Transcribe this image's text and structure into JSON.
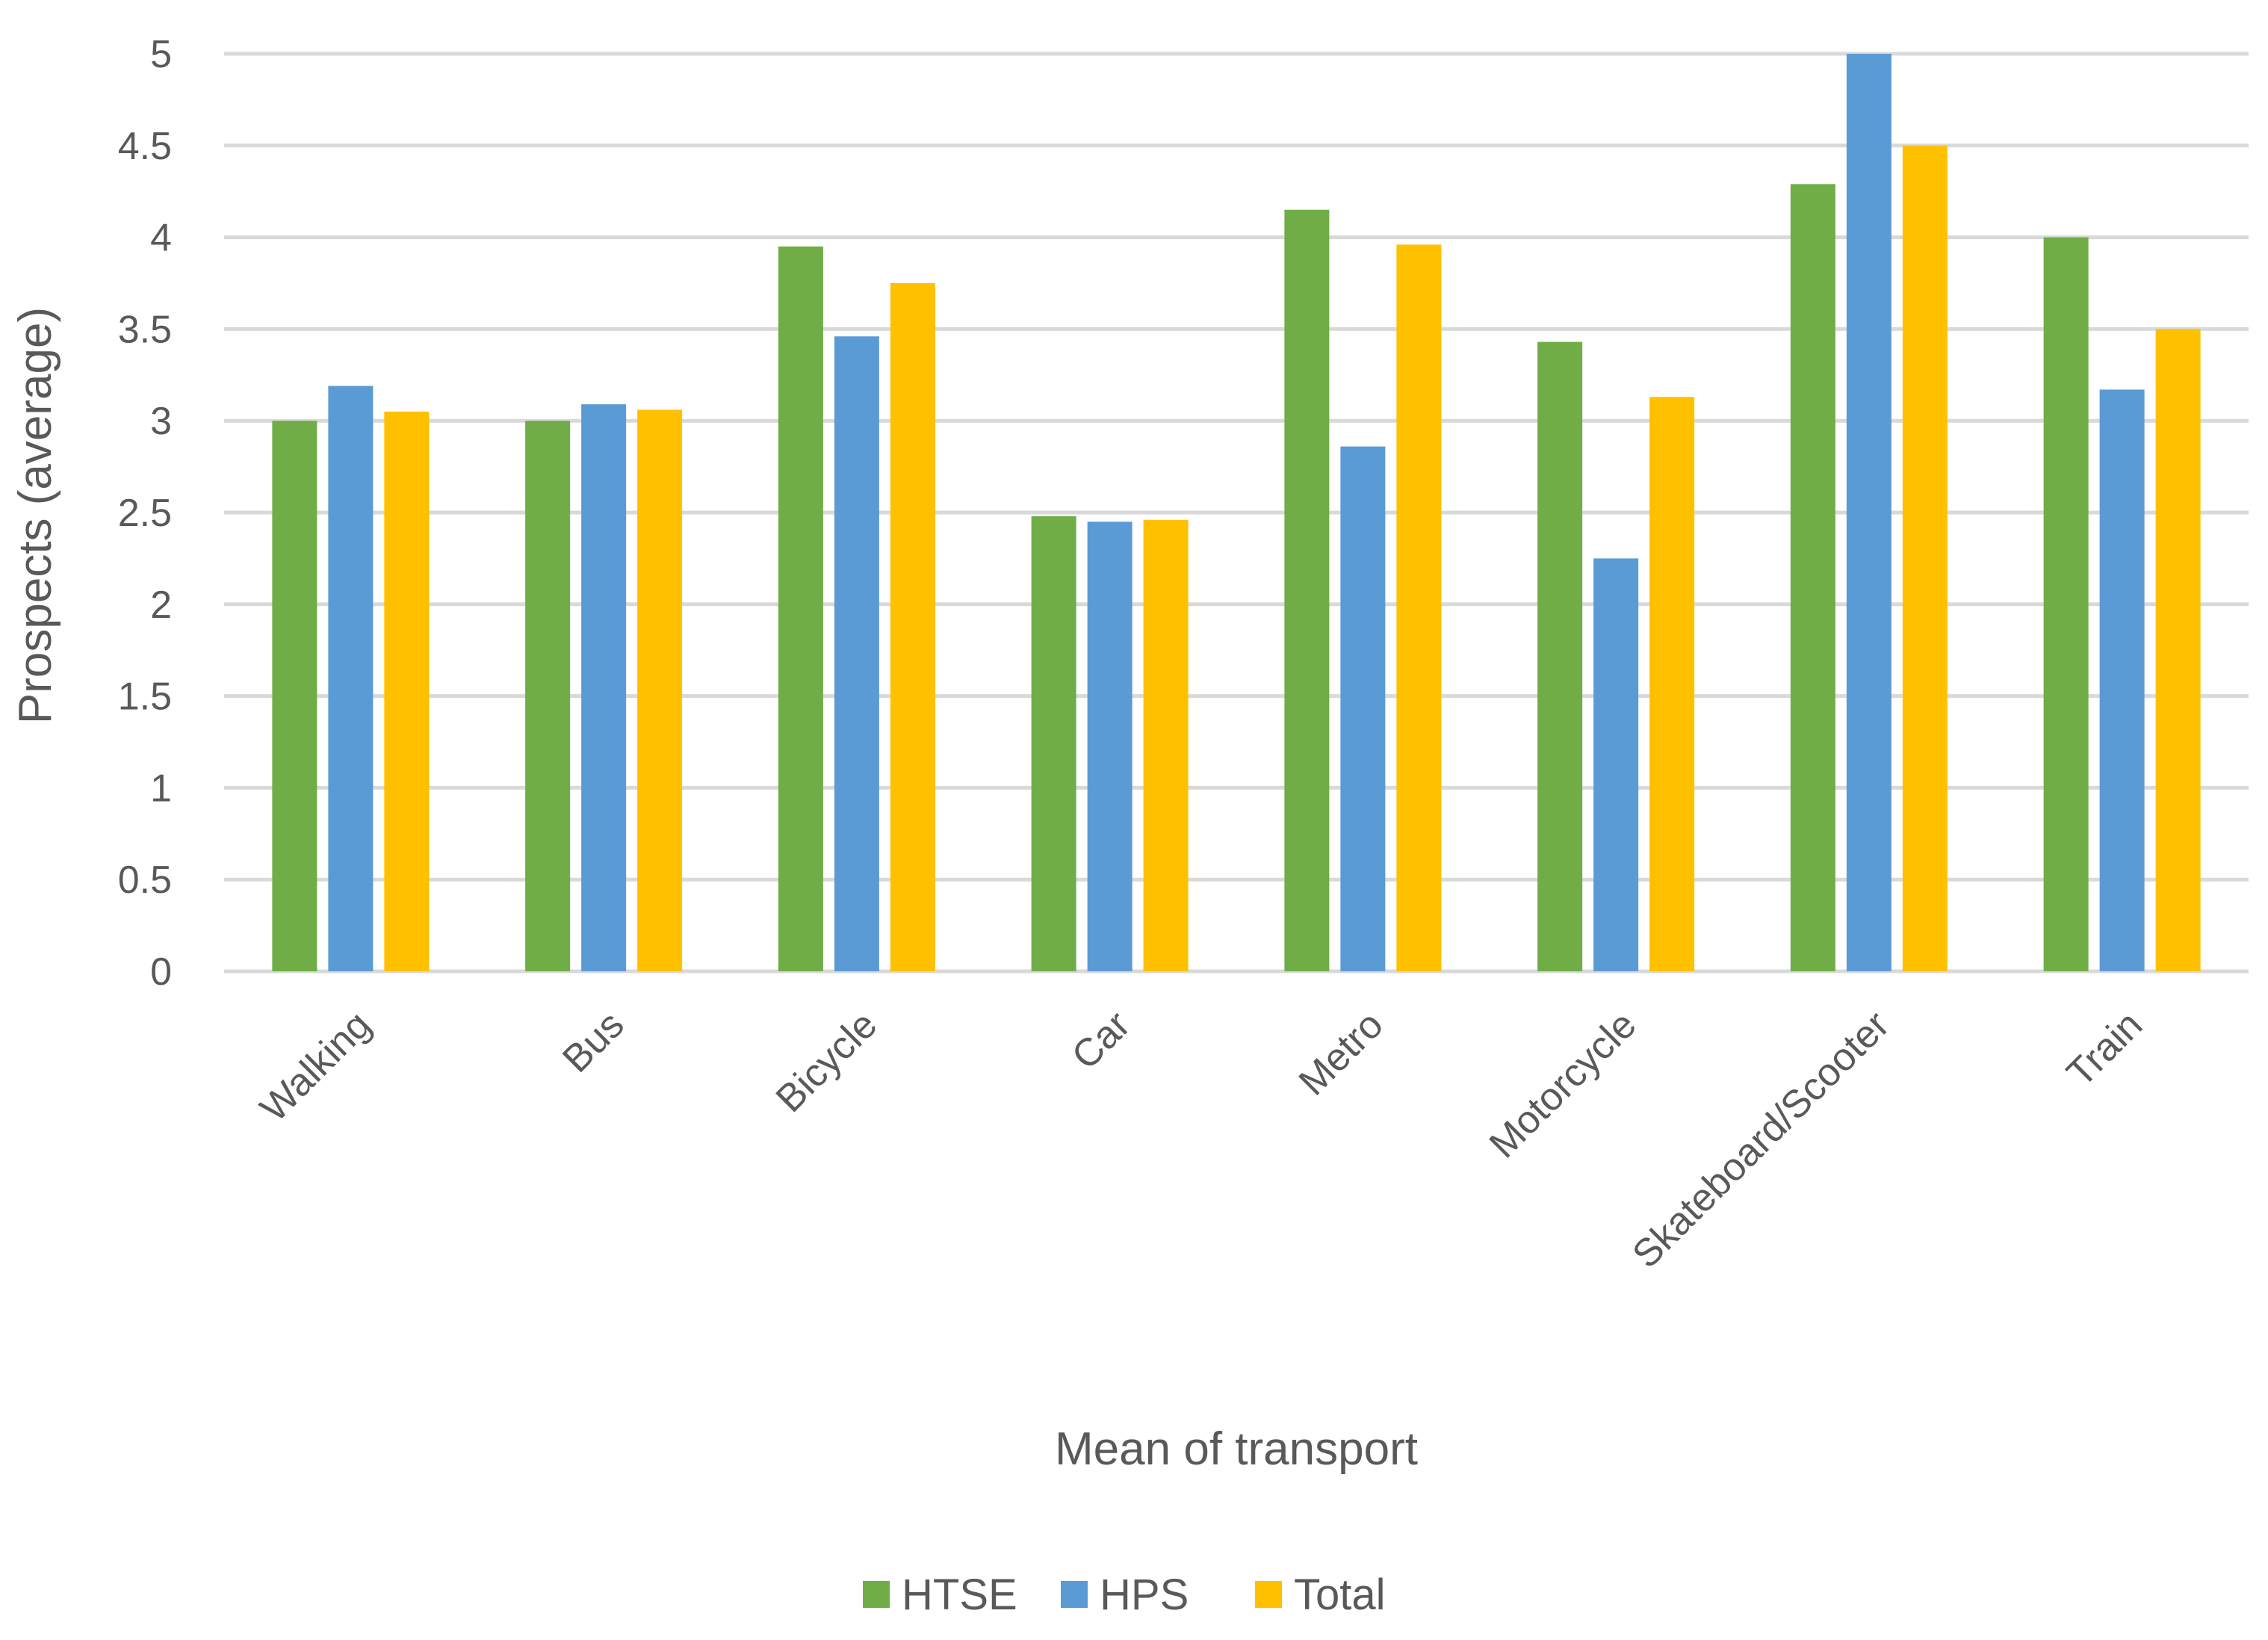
{
  "chart_data": {
    "type": "bar",
    "title": "",
    "xlabel": "Mean of transport",
    "ylabel": "Prospects (average)",
    "ylim": [
      0,
      5
    ],
    "yticks": [
      0,
      0.5,
      1,
      1.5,
      2,
      2.5,
      3,
      3.5,
      4,
      4.5,
      5
    ],
    "ytick_labels": [
      "0",
      "0.5",
      "1",
      "1.5",
      "2",
      "2.5",
      "3",
      "3.5",
      "4",
      "4.5",
      "5"
    ],
    "grid": true,
    "legend_position": "bottom",
    "categories": [
      "Walking",
      "Bus",
      "Bicycle",
      "Car",
      "Metro",
      "Motorcycle",
      "Skateboard/Scooter",
      "Train"
    ],
    "series": [
      {
        "name": "HTSE",
        "color": "#70AD47",
        "values": [
          3.0,
          3.0,
          3.95,
          2.48,
          4.15,
          3.43,
          4.29,
          4.0
        ]
      },
      {
        "name": "HPS",
        "color": "#5B9BD5",
        "values": [
          3.19,
          3.09,
          3.46,
          2.45,
          2.86,
          2.25,
          5.0,
          3.17
        ]
      },
      {
        "name": "Total",
        "color": "#FFC000",
        "values": [
          3.05,
          3.06,
          3.75,
          2.46,
          3.96,
          3.13,
          4.5,
          3.5
        ]
      }
    ]
  }
}
